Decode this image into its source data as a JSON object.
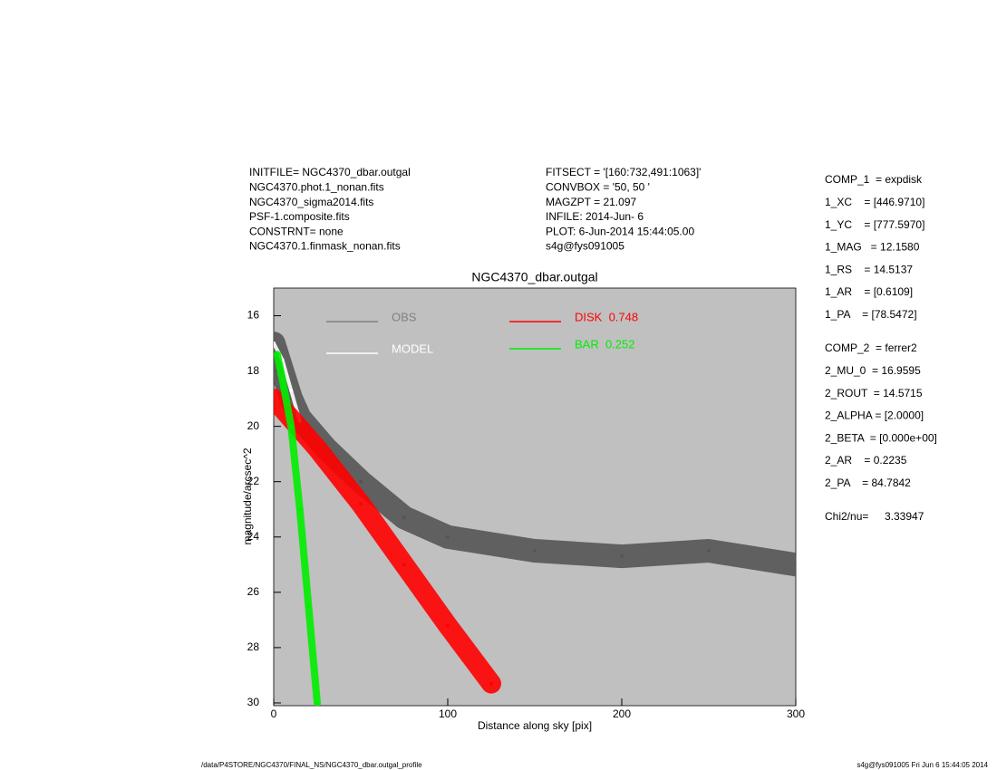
{
  "header": {
    "left": [
      "INITFILE= NGC4370_dbar.outgal",
      "NGC4370.phot.1_nonan.fits",
      "NGC4370_sigma2014.fits",
      "PSF-1.composite.fits",
      "CONSTRNT= none",
      "NGC4370.1.finmask_nonan.fits"
    ],
    "middle": [
      "FITSECT = '[160:732,491:1063]'",
      "CONVBOX = '50, 50  '",
      "MAGZPT =            21.097",
      "INFILE: 2014-Jun- 6",
      "PLOT:  6-Jun-2014 15:44:05.00",
      "s4g@fys091005"
    ]
  },
  "params": {
    "comp1": [
      "COMP_1  = expdisk",
      "1_XC    = [446.9710]",
      "1_YC    = [777.5970]",
      "1_MAG   = 12.1580",
      "1_RS    = 14.5137",
      "1_AR    = [0.6109]",
      "1_PA    = [78.5472]"
    ],
    "comp2": [
      "COMP_2  = ferrer2",
      "2_MU_0  = 16.9595",
      "2_ROUT  = 14.5715",
      "2_ALPHA = [2.0000]",
      "2_BETA  = [0.000e+00]",
      "2_AR    = 0.2235",
      "2_PA    = 84.7842"
    ],
    "chi_label": "Chi2/nu=",
    "chi_value": "3.33947"
  },
  "footer": {
    "left": "/data/P4STORE/NGC4370/FINAL_NS/NGC4370_dbar.outgal_profile",
    "right": "s4g@fys091005  Fri Jun  6 15:44:05 2014"
  },
  "chart_data": {
    "type": "scatter",
    "title": "NGC4370_dbar.outgal",
    "x_label": "Distance along sky [pix]",
    "y_label": "magnitude/arcsec^2",
    "xlim": [
      0,
      300
    ],
    "xticks": [
      0,
      100,
      200,
      300
    ],
    "ylim": [
      30.1,
      15
    ],
    "yticks": [
      16,
      18,
      20,
      22,
      24,
      26,
      28,
      30
    ],
    "background": "#c0c0c0",
    "series": [
      {
        "name": "OBS",
        "color": "#555555",
        "legend_color": "#808080",
        "x": [
          0,
          5,
          10,
          15,
          30,
          50,
          75,
          100,
          150,
          200,
          250,
          300
        ],
        "values": [
          17,
          18,
          19,
          19.7,
          20.8,
          22,
          23.3,
          24,
          24.5,
          24.7,
          24.5,
          25
        ]
      },
      {
        "name": "MODEL",
        "color": "#ffffff",
        "x": [
          0,
          5,
          10,
          15
        ],
        "values": [
          17,
          17.6,
          18.7,
          19.8
        ]
      },
      {
        "name": "DISK  0.748",
        "color": "#ff0000",
        "x": [
          0,
          25,
          50,
          75,
          100,
          125
        ],
        "values": [
          19,
          20.8,
          22.8,
          25,
          27.2,
          29.3
        ]
      },
      {
        "name": "BAR  0.252",
        "color": "#00ee00",
        "x": [
          2,
          5,
          10,
          15,
          20,
          25
        ],
        "values": [
          17.4,
          18.3,
          20,
          23,
          26.5,
          30
        ]
      }
    ]
  }
}
